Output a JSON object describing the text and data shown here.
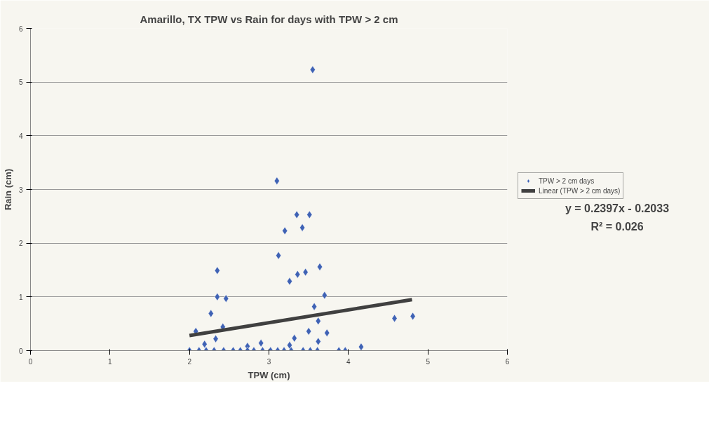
{
  "chart_data": {
    "type": "scatter",
    "title": "Amarillo, TX TPW vs Rain for days with TPW > 2 cm",
    "xlabel": "TPW (cm)",
    "ylabel": "Rain (cm)",
    "xlim": [
      0,
      6
    ],
    "xticks": [
      0,
      1,
      2,
      3,
      4,
      5,
      6
    ],
    "ylim": [
      0,
      6
    ],
    "yticks": [
      0,
      1,
      2,
      3,
      4,
      5,
      6
    ],
    "grid": "y",
    "legend": "right",
    "annotations": [
      "y = 0.2397x - 0.2033",
      "R² = 0.026"
    ],
    "series": [
      {
        "name": "TPW > 2 cm days",
        "color": "#3f62b4",
        "type": "scatter",
        "marker": "diamond",
        "x": [
          3.55,
          3.1,
          3.35,
          3.51,
          3.42,
          3.2,
          3.12,
          2.35,
          3.64,
          3.36,
          3.46,
          3.26,
          2.35,
          2.46,
          3.7,
          2.27,
          3.57,
          3.62,
          2.42,
          2.08,
          3.5,
          3.73,
          2.33,
          3.32,
          3.62,
          2.9,
          4.16,
          4.58,
          4.81,
          2.19,
          2.73,
          3.26,
          2.0,
          2.12,
          2.21,
          2.31,
          2.43,
          2.55,
          2.64,
          2.73,
          2.81,
          2.92,
          3.02,
          3.11,
          3.19,
          3.28,
          3.43,
          3.52,
          3.61,
          3.88,
          3.96
        ],
        "values": [
          5.23,
          3.16,
          2.53,
          2.53,
          2.29,
          2.23,
          1.77,
          1.49,
          1.56,
          1.42,
          1.46,
          1.29,
          1.0,
          0.97,
          1.03,
          0.69,
          0.82,
          0.55,
          0.44,
          0.36,
          0.36,
          0.33,
          0.22,
          0.23,
          0.17,
          0.14,
          0.07,
          0.6,
          0.64,
          0.12,
          0.08,
          0.1,
          0,
          0,
          0,
          0,
          0,
          0,
          0,
          0,
          0,
          0,
          0,
          0,
          0,
          0,
          0,
          0,
          0,
          0,
          0
        ]
      },
      {
        "name": "Linear (TPW > 2 cm days)",
        "color": "#404040",
        "type": "line",
        "x": [
          2,
          4.8
        ],
        "values": [
          0.28,
          0.95
        ]
      }
    ]
  }
}
